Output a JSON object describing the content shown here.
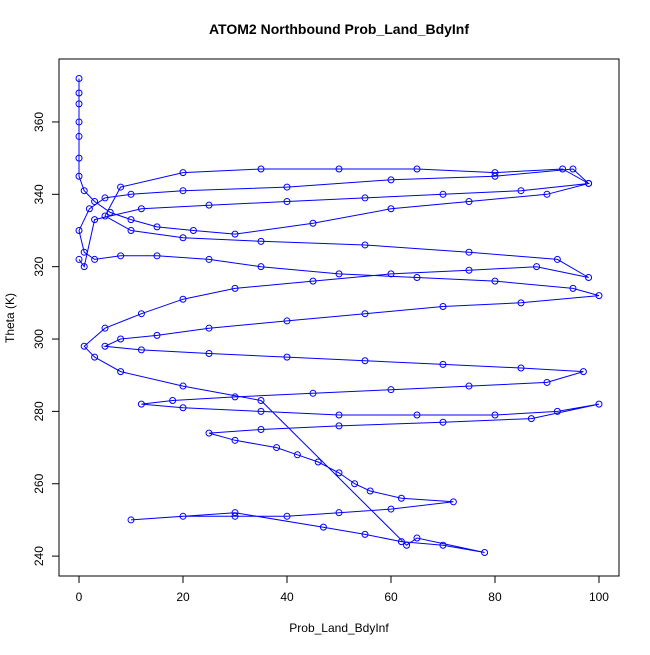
{
  "chart_data": {
    "type": "line",
    "title": "ATOM2 Northbound Prob_Land_BdyInf",
    "x_label": "Prob_Land_BdyInf",
    "y_label": "Theta (K)",
    "color": "#0000ff",
    "markers": true,
    "x": [
      0,
      0,
      0,
      0,
      0,
      0,
      0,
      1,
      3,
      6,
      10,
      15,
      22,
      30,
      45,
      60,
      75,
      90,
      98,
      95,
      80,
      60,
      40,
      20,
      10,
      5,
      2,
      0,
      1,
      3,
      8,
      15,
      25,
      35,
      50,
      65,
      80,
      95,
      100,
      85,
      70,
      55,
      40,
      25,
      15,
      8,
      5,
      12,
      25,
      40,
      55,
      70,
      85,
      97,
      90,
      75,
      60,
      45,
      30,
      18,
      12,
      20,
      35,
      50,
      65,
      80,
      92,
      100,
      87,
      70,
      50,
      35,
      25,
      30,
      38,
      42,
      46,
      50,
      53,
      56,
      62,
      72,
      60,
      50,
      40,
      30,
      20,
      10,
      30,
      47,
      55,
      62,
      70,
      78,
      65,
      63,
      35,
      20,
      8,
      3,
      1,
      5,
      12,
      20,
      30,
      45,
      60,
      75,
      88,
      98,
      92,
      75,
      55,
      35,
      20,
      10,
      5,
      8,
      20,
      35,
      50,
      65,
      80,
      93,
      98,
      85,
      70,
      55,
      40,
      25,
      12,
      3,
      1,
      0
    ],
    "values": [
      372,
      368,
      365,
      360,
      356,
      350,
      345,
      341,
      338,
      335,
      333,
      331,
      330,
      329,
      332,
      336,
      338,
      340,
      343,
      347,
      345,
      344,
      342,
      341,
      340,
      339,
      336,
      330,
      324,
      322,
      323,
      323,
      322,
      320,
      318,
      317,
      316,
      314,
      312,
      310,
      309,
      307,
      305,
      303,
      301,
      300,
      298,
      297,
      296,
      295,
      294,
      293,
      292,
      291,
      288,
      287,
      286,
      285,
      284,
      283,
      282,
      281,
      280,
      279,
      279,
      279,
      280,
      282,
      278,
      277,
      276,
      275,
      274,
      272,
      270,
      268,
      266,
      263,
      260,
      258,
      256,
      255,
      253,
      252,
      251,
      251,
      251,
      250,
      252,
      248,
      246,
      244,
      243,
      241,
      245,
      243,
      283,
      287,
      291,
      295,
      298,
      303,
      307,
      311,
      314,
      316,
      318,
      319,
      320,
      317,
      322,
      324,
      326,
      327,
      328,
      330,
      334,
      342,
      346,
      347,
      347,
      347,
      346,
      347,
      343,
      341,
      340,
      339,
      338,
      337,
      336,
      333,
      320,
      322
    ],
    "xlim": [
      -3.85,
      103.85
    ],
    "ylim": [
      234.5,
      377.4
    ],
    "xticks": [
      0,
      20,
      40,
      60,
      80,
      100
    ],
    "yticks": [
      240,
      260,
      280,
      300,
      320,
      340,
      360
    ]
  }
}
